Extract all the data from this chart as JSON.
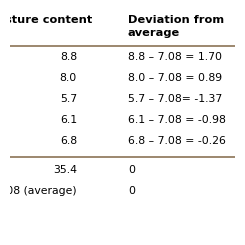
{
  "col1_header_line1": "Moisture content",
  "col1_header_line2": "(%)",
  "col2_header_line1": "Deviation from",
  "col2_header_line2": "average",
  "rows": [
    [
      "8.8",
      "8.8 – 7.08 = 1.70"
    ],
    [
      "8.0",
      "8.0 – 7.08 = 0.89"
    ],
    [
      "5.7",
      "5.7 – 7.08= -1.37"
    ],
    [
      "6.1",
      "6.1 – 7.08 = -0.98"
    ],
    [
      "6.8",
      "6.8 – 7.08 = -0.26"
    ]
  ],
  "bottom_rows": [
    [
      "35.4",
      "0"
    ],
    [
      "7.08 (average)",
      "0"
    ]
  ],
  "bg_color": "#ffffff",
  "line_color": "#8B7355",
  "font_size": 7.8,
  "header_font_size": 8.2
}
